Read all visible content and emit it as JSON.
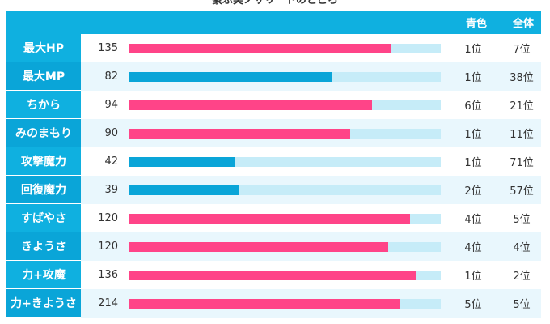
{
  "title": "豪ぷ実ノサリートのところ",
  "header": {
    "col_blue": "青色",
    "col_all": "全体"
  },
  "colors": {
    "pink": "#ff4488",
    "blue": "#0aa5d8",
    "track": "#c6ecf8"
  },
  "rows": [
    {
      "label": "最大HP",
      "value": "135",
      "ratio": 0.84,
      "color": "pink",
      "rank_blue": "1位",
      "rank_all": "7位"
    },
    {
      "label": "最大MP",
      "value": "82",
      "ratio": 0.65,
      "color": "blue",
      "rank_blue": "1位",
      "rank_all": "38位"
    },
    {
      "label": "ちから",
      "value": "94",
      "ratio": 0.78,
      "color": "pink",
      "rank_blue": "6位",
      "rank_all": "21位"
    },
    {
      "label": "みのまもり",
      "value": "90",
      "ratio": 0.71,
      "color": "pink",
      "rank_blue": "1位",
      "rank_all": "11位"
    },
    {
      "label": "攻撃魔力",
      "value": "42",
      "ratio": 0.34,
      "color": "blue",
      "rank_blue": "1位",
      "rank_all": "71位"
    },
    {
      "label": "回復魔力",
      "value": "39",
      "ratio": 0.35,
      "color": "blue",
      "rank_blue": "2位",
      "rank_all": "57位"
    },
    {
      "label": "すばやさ",
      "value": "120",
      "ratio": 0.9,
      "color": "pink",
      "rank_blue": "4位",
      "rank_all": "5位"
    },
    {
      "label": "きようさ",
      "value": "120",
      "ratio": 0.83,
      "color": "pink",
      "rank_blue": "4位",
      "rank_all": "4位"
    },
    {
      "label": "力+攻魔",
      "value": "136",
      "ratio": 0.92,
      "color": "pink",
      "rank_blue": "1位",
      "rank_all": "2位"
    },
    {
      "label": "力+きようさ",
      "value": "214",
      "ratio": 0.87,
      "color": "pink",
      "rank_blue": "5位",
      "rank_all": "5位"
    }
  ]
}
